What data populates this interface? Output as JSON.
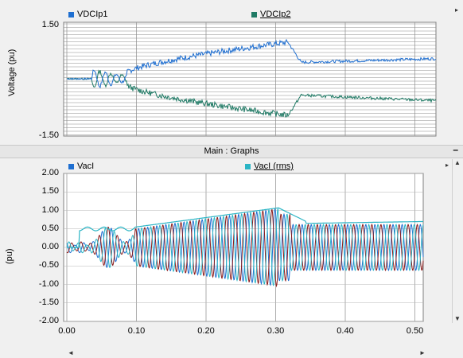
{
  "top_graph": {
    "ylabel": "Voltage (pu)",
    "yticks": [
      "1.50",
      "-1.50"
    ],
    "legend": [
      {
        "label": "VDCIp1",
        "color": "#1f6fd1",
        "underline": false
      },
      {
        "label": "VDCIp2",
        "color": "#1f7a65",
        "underline": true
      }
    ]
  },
  "divider": {
    "title": "Main : Graphs",
    "collapse": "–"
  },
  "bottom_graph": {
    "ylabel": "(pu)",
    "yticks": [
      "2.00",
      "1.50",
      "1.00",
      "0.50",
      "0.00",
      "-0.50",
      "-1.00",
      "-1.50",
      "-2.00"
    ],
    "legend": [
      {
        "label": "VacI",
        "color": "#1f6fd1",
        "underline": false
      },
      {
        "label": "VacI (rms)",
        "color": "#2bb5c5",
        "underline": true
      }
    ]
  },
  "x_axis": {
    "ticks": [
      "0.00",
      "0.10",
      "0.20",
      "0.30",
      "0.40",
      "0.50"
    ]
  },
  "colors": {
    "blue": "#1f6fd1",
    "green": "#1f7a65",
    "red": "#8b1a1a",
    "cyan": "#2bb5c5"
  },
  "icons": {
    "scroll_up": "▲",
    "scroll_down": "▼",
    "scroll_left": "◄",
    "scroll_right": "►"
  }
}
